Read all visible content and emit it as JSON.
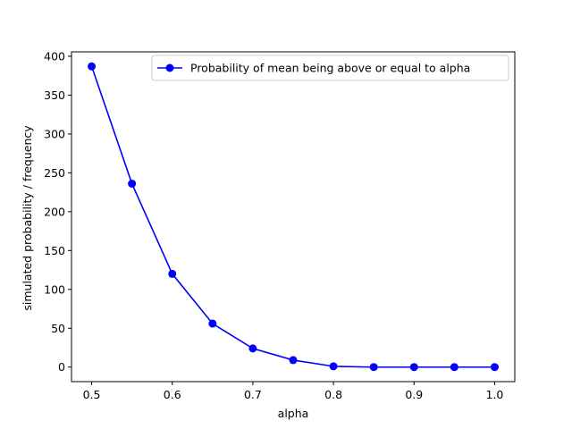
{
  "chart_data": {
    "type": "line",
    "title": "",
    "xlabel": "alpha",
    "ylabel": "simulated probability / frequency",
    "xlim": [
      0.475,
      1.025
    ],
    "ylim": [
      -18.7,
      405.7
    ],
    "x_ticks": [
      0.5,
      0.6,
      0.7,
      0.8,
      0.9,
      1.0
    ],
    "x_tick_labels": [
      "0.5",
      "0.6",
      "0.7",
      "0.8",
      "0.9",
      "1.0"
    ],
    "y_ticks": [
      0,
      50,
      100,
      150,
      200,
      250,
      300,
      350,
      400
    ],
    "y_tick_labels": [
      "0",
      "50",
      "100",
      "150",
      "200",
      "250",
      "300",
      "350",
      "400"
    ],
    "grid": false,
    "legend_position": "top-right",
    "series": [
      {
        "name": "Probability of mean being above or equal to alpha",
        "color": "#0000ff",
        "marker": "circle",
        "x": [
          0.5,
          0.55,
          0.6,
          0.65,
          0.7,
          0.75,
          0.8,
          0.85,
          0.9,
          0.95,
          1.0
        ],
        "values": [
          387,
          236,
          120,
          56,
          24,
          9,
          1,
          0,
          0,
          0,
          0
        ]
      }
    ]
  }
}
